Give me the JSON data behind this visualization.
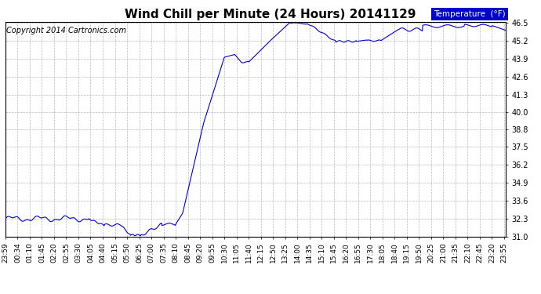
{
  "title": "Wind Chill per Minute (24 Hours) 20141129",
  "copyright": "Copyright 2014 Cartronics.com",
  "legend_label": "Temperature  (°F)",
  "line_color": "#0000cc",
  "background_color": "#ffffff",
  "grid_color": "#aaaaaa",
  "ylim": [
    31.0,
    46.5
  ],
  "yticks": [
    31.0,
    32.3,
    33.6,
    34.9,
    36.2,
    37.5,
    38.8,
    40.0,
    41.3,
    42.6,
    43.9,
    45.2,
    46.5
  ],
  "xtick_labels": [
    "23:59",
    "00:34",
    "01:10",
    "01:45",
    "02:20",
    "02:55",
    "03:30",
    "04:05",
    "04:40",
    "05:15",
    "05:50",
    "06:25",
    "07:00",
    "07:35",
    "08:10",
    "08:45",
    "09:20",
    "09:55",
    "10:30",
    "11:05",
    "11:40",
    "12:15",
    "12:50",
    "13:25",
    "14:00",
    "14:35",
    "15:10",
    "15:45",
    "16:20",
    "16:55",
    "17:30",
    "18:05",
    "18:40",
    "19:15",
    "19:50",
    "20:25",
    "21:00",
    "21:35",
    "22:10",
    "22:45",
    "23:20",
    "23:55"
  ],
  "title_fontsize": 11,
  "copyright_fontsize": 7,
  "tick_fontsize": 7,
  "legend_fontsize": 7.5,
  "legend_bg_color": "#0000cc",
  "legend_text_color": "#ffffff"
}
